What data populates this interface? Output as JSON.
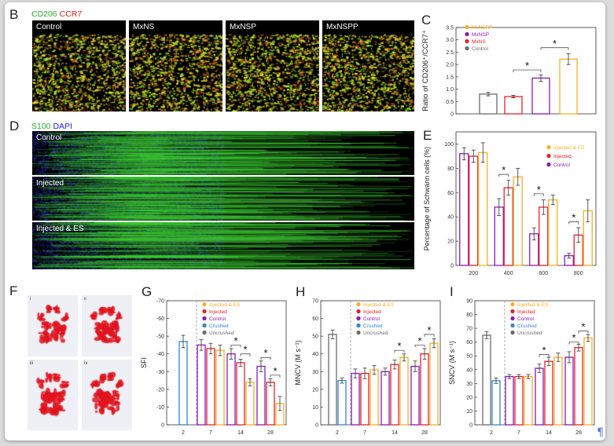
{
  "panels": {
    "B": {
      "letter": "B",
      "stains": [
        {
          "text": "CD206",
          "color": "#2cae2c"
        },
        {
          "text": " CCR7",
          "color": "#e01f1f"
        }
      ],
      "images": [
        "Control",
        "MxNS",
        "MxNSP",
        "MxNSPP"
      ]
    },
    "D": {
      "letter": "D",
      "stains": [
        {
          "text": "S100",
          "color": "#2cae2c"
        },
        {
          "text": " DAPI",
          "color": "#1f1fe0"
        }
      ],
      "rows": [
        "Control",
        "Injected",
        "Injected & ES"
      ]
    },
    "F": {
      "letter": "F",
      "subpanels": [
        "i",
        "ii",
        "iii",
        "iv"
      ]
    }
  },
  "colors": {
    "orange": "#f5b025",
    "purple": "#8a1ab8",
    "red": "#e8202a",
    "blue": "#2e88c8",
    "gray": "#6b6b6b"
  },
  "chart_data": [
    {
      "id": "C",
      "letter": "C",
      "type": "bar",
      "ylabel": "Ratio of CD206⁺/CCR7⁺",
      "ylim": [
        0,
        3.5
      ],
      "yticks": [
        0,
        0.5,
        1.0,
        1.5,
        2.0,
        2.5,
        3.0,
        3.5
      ],
      "yticklabels": [
        "0",
        "0.5",
        "1.0",
        "1.5",
        "2.0",
        "2.5",
        "3.0",
        "3.5"
      ],
      "legend": [
        {
          "name": "MxNSPP",
          "color": "#f5b025"
        },
        {
          "name": "MxNSP",
          "color": "#8a1ab8"
        },
        {
          "name": "MxNS",
          "color": "#e8202a"
        },
        {
          "name": "Control",
          "color": "#6b6b6b"
        }
      ],
      "bars": [
        {
          "name": "Control",
          "value": 0.8,
          "err": 0.07,
          "color": "#6b6b6b"
        },
        {
          "name": "MxNS",
          "value": 0.7,
          "err": 0.05,
          "color": "#e8202a"
        },
        {
          "name": "MxNSP",
          "value": 1.45,
          "err": 0.13,
          "color": "#8a1ab8"
        },
        {
          "name": "MxNSPP",
          "value": 2.22,
          "err": 0.22,
          "color": "#f5b025"
        }
      ],
      "significance": [
        "*",
        "*"
      ]
    },
    {
      "id": "E",
      "letter": "E",
      "type": "bar",
      "ylabel": "Percentage of Schwann cells (%)",
      "ylim": [
        0,
        110
      ],
      "yticks": [
        0,
        20,
        40,
        60,
        80,
        100
      ],
      "categories": [
        "200",
        "400",
        "600",
        "800"
      ],
      "legend": [
        {
          "name": "Injected & ES",
          "color": "#f5b025"
        },
        {
          "name": "Injected",
          "color": "#e8202a"
        },
        {
          "name": "Control",
          "color": "#8a1ab8"
        }
      ],
      "series": [
        {
          "name": "Control",
          "color": "#8a1ab8",
          "values": [
            92,
            48,
            26,
            8
          ],
          "err": [
            5,
            7,
            5,
            2
          ]
        },
        {
          "name": "Injected",
          "color": "#e8202a",
          "values": [
            90,
            64,
            48,
            25
          ],
          "err": [
            5,
            6,
            6,
            6
          ]
        },
        {
          "name": "Injected & ES",
          "color": "#f5b025",
          "values": [
            93,
            73,
            54,
            45
          ],
          "err": [
            8,
            7,
            4,
            9
          ]
        }
      ],
      "significance": [
        "*",
        "*",
        "*"
      ]
    },
    {
      "id": "G",
      "letter": "G",
      "type": "bar",
      "ylabel": "SFI",
      "ylim": [
        0,
        -70
      ],
      "yticks": [
        0,
        -10,
        -20,
        -30,
        -40,
        -50,
        -60,
        -70
      ],
      "categories": [
        "2",
        "7",
        "14",
        "28"
      ],
      "legend": [
        {
          "name": "Injected & ES",
          "color": "#f5b025"
        },
        {
          "name": "Injected",
          "color": "#e8202a"
        },
        {
          "name": "Control",
          "color": "#8a1ab8"
        },
        {
          "name": "Crushed",
          "color": "#2e88c8"
        },
        {
          "name": "Uncrushed",
          "color": "#6b6b6b"
        }
      ],
      "groups": [
        {
          "cat": "2",
          "bars": [
            {
              "name": "Crushed",
              "value": -47,
              "err": 3.5,
              "color": "#2e88c8"
            }
          ]
        },
        {
          "cat": "7",
          "bars": [
            {
              "name": "Control",
              "value": -45,
              "err": 3,
              "color": "#8a1ab8"
            },
            {
              "name": "Injected",
              "value": -43,
              "err": 3,
              "color": "#e8202a"
            },
            {
              "name": "Injected & ES",
              "value": -42,
              "err": 3,
              "color": "#f5b025"
            }
          ]
        },
        {
          "cat": "14",
          "bars": [
            {
              "name": "Control",
              "value": -40,
              "err": 3,
              "color": "#8a1ab8"
            },
            {
              "name": "Injected",
              "value": -35,
              "err": 2,
              "color": "#e8202a"
            },
            {
              "name": "Injected & ES",
              "value": -24,
              "err": 2,
              "color": "#f5b025"
            }
          ]
        },
        {
          "cat": "28",
          "bars": [
            {
              "name": "Control",
              "value": -33,
              "err": 3,
              "color": "#8a1ab8"
            },
            {
              "name": "Injected",
              "value": -24,
              "err": 2,
              "color": "#e8202a"
            },
            {
              "name": "Injected & ES",
              "value": -12,
              "err": 4,
              "color": "#f5b025"
            }
          ]
        }
      ],
      "significance": [
        "*",
        "*",
        "*",
        "*"
      ]
    },
    {
      "id": "H",
      "letter": "H",
      "type": "bar",
      "ylabel": "MNCV (M s⁻¹)",
      "ylim": [
        0,
        70
      ],
      "yticks": [
        0,
        10,
        20,
        30,
        40,
        50,
        60,
        70
      ],
      "categories": [
        "2",
        "7",
        "14",
        "28"
      ],
      "legend": [
        {
          "name": "Injected & ES",
          "color": "#f5b025"
        },
        {
          "name": "Injected",
          "color": "#e8202a"
        },
        {
          "name": "Control",
          "color": "#8a1ab8"
        },
        {
          "name": "Crushed",
          "color": "#2e88c8"
        },
        {
          "name": "Uncrushed",
          "color": "#6b6b6b"
        }
      ],
      "groups": [
        {
          "cat": "2",
          "bars": [
            {
              "name": "Uncrushed",
              "value": 51,
              "err": 2.5,
              "color": "#6b6b6b"
            },
            {
              "name": "Crushed",
              "value": 25,
              "err": 1.5,
              "color": "#2e88c8"
            }
          ]
        },
        {
          "cat": "7",
          "bars": [
            {
              "name": "Control",
              "value": 29,
              "err": 2.5,
              "color": "#8a1ab8"
            },
            {
              "name": "Injected",
              "value": 29,
              "err": 3,
              "color": "#e8202a"
            },
            {
              "name": "Injected & ES",
              "value": 31,
              "err": 2.5,
              "color": "#f5b025"
            }
          ]
        },
        {
          "cat": "14",
          "bars": [
            {
              "name": "Control",
              "value": 30,
              "err": 2,
              "color": "#8a1ab8"
            },
            {
              "name": "Injected",
              "value": 34,
              "err": 2.5,
              "color": "#e8202a"
            },
            {
              "name": "Injected & ES",
              "value": 38,
              "err": 2,
              "color": "#f5b025"
            }
          ]
        },
        {
          "cat": "28",
          "bars": [
            {
              "name": "Control",
              "value": 33,
              "err": 3,
              "color": "#8a1ab8"
            },
            {
              "name": "Injected",
              "value": 40,
              "err": 3,
              "color": "#e8202a"
            },
            {
              "name": "Injected & ES",
              "value": 46,
              "err": 2.5,
              "color": "#f5b025"
            }
          ]
        }
      ],
      "significance": [
        "*",
        "*",
        "*"
      ]
    },
    {
      "id": "I",
      "letter": "I",
      "type": "bar",
      "ylabel": "SNCV (M s⁻¹)",
      "ylim": [
        0,
        90
      ],
      "yticks": [
        0,
        10,
        20,
        30,
        40,
        50,
        60,
        70,
        80,
        90
      ],
      "categories": [
        "2",
        "7",
        "14",
        "28"
      ],
      "legend": [
        {
          "name": "Injected & ES",
          "color": "#f5b025"
        },
        {
          "name": "Injected",
          "color": "#e8202a"
        },
        {
          "name": "Control",
          "color": "#8a1ab8"
        },
        {
          "name": "Crushed",
          "color": "#2e88c8"
        },
        {
          "name": "Uncrushed",
          "color": "#6b6b6b"
        }
      ],
      "groups": [
        {
          "cat": "2",
          "bars": [
            {
              "name": "Uncrushed",
              "value": 65,
              "err": 2.5,
              "color": "#6b6b6b"
            },
            {
              "name": "Crushed",
              "value": 32,
              "err": 2,
              "color": "#2e88c8"
            }
          ]
        },
        {
          "cat": "7",
          "bars": [
            {
              "name": "Control",
              "value": 35,
              "err": 1.5,
              "color": "#8a1ab8"
            },
            {
              "name": "Injected",
              "value": 35,
              "err": 1.5,
              "color": "#e8202a"
            },
            {
              "name": "Injected & ES",
              "value": 35,
              "err": 1.5,
              "color": "#f5b025"
            }
          ]
        },
        {
          "cat": "14",
          "bars": [
            {
              "name": "Control",
              "value": 41,
              "err": 3,
              "color": "#8a1ab8"
            },
            {
              "name": "Injected",
              "value": 46,
              "err": 3,
              "color": "#e8202a"
            },
            {
              "name": "Injected & ES",
              "value": 49,
              "err": 3,
              "color": "#f5b025"
            }
          ]
        },
        {
          "cat": "28",
          "bars": [
            {
              "name": "Control",
              "value": 49,
              "err": 4,
              "color": "#8a1ab8"
            },
            {
              "name": "Injected",
              "value": 56,
              "err": 2.5,
              "color": "#e8202a"
            },
            {
              "name": "Injected & ES",
              "value": 63,
              "err": 2.5,
              "color": "#f5b025"
            }
          ]
        }
      ],
      "significance": [
        "*",
        "*",
        "*"
      ]
    }
  ]
}
